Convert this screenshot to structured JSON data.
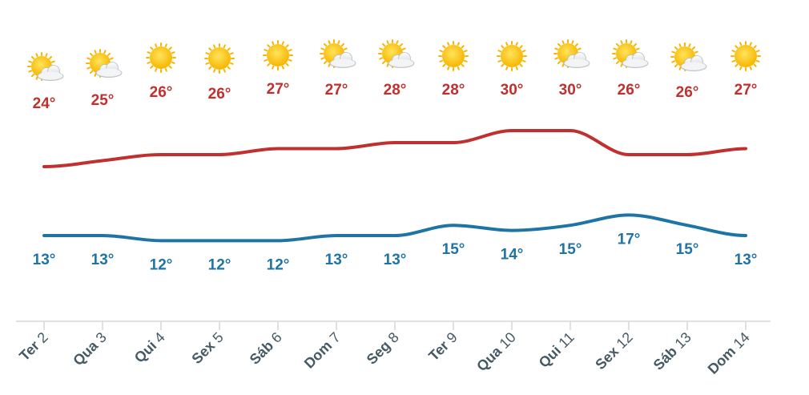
{
  "chart_data": {
    "type": "line",
    "categories": [
      {
        "weekday": "Ter",
        "day": "2"
      },
      {
        "weekday": "Qua",
        "day": "3"
      },
      {
        "weekday": "Qui",
        "day": "4"
      },
      {
        "weekday": "Sex",
        "day": "5"
      },
      {
        "weekday": "Sáb",
        "day": "6"
      },
      {
        "weekday": "Dom",
        "day": "7"
      },
      {
        "weekday": "Seg",
        "day": "8"
      },
      {
        "weekday": "Ter",
        "day": "9"
      },
      {
        "weekday": "Qua",
        "day": "10"
      },
      {
        "weekday": "Qui",
        "day": "11"
      },
      {
        "weekday": "Sex",
        "day": "12"
      },
      {
        "weekday": "Sáb",
        "day": "13"
      },
      {
        "weekday": "Dom",
        "day": "14"
      }
    ],
    "icons": [
      "partly-cloudy-icon",
      "partly-cloudy-icon",
      "sun-icon",
      "sun-icon",
      "sun-icon",
      "partly-cloudy-icon",
      "partly-cloudy-icon",
      "sun-icon",
      "sun-icon",
      "partly-cloudy-icon",
      "partly-cloudy-icon",
      "partly-cloudy-icon",
      "sun-icon"
    ],
    "series": [
      {
        "key": "max",
        "color": "#c0302e",
        "values": [
          24,
          25,
          26,
          26,
          27,
          27,
          28,
          28,
          30,
          30,
          26,
          26,
          27
        ]
      },
      {
        "key": "min",
        "color": "#1f74a6",
        "values": [
          13,
          13,
          12,
          12,
          12,
          13,
          13,
          15,
          14,
          15,
          17,
          15,
          13
        ]
      }
    ],
    "unit": "°",
    "axis_color": "#e0e0e0",
    "grid": false,
    "legend": "none"
  }
}
